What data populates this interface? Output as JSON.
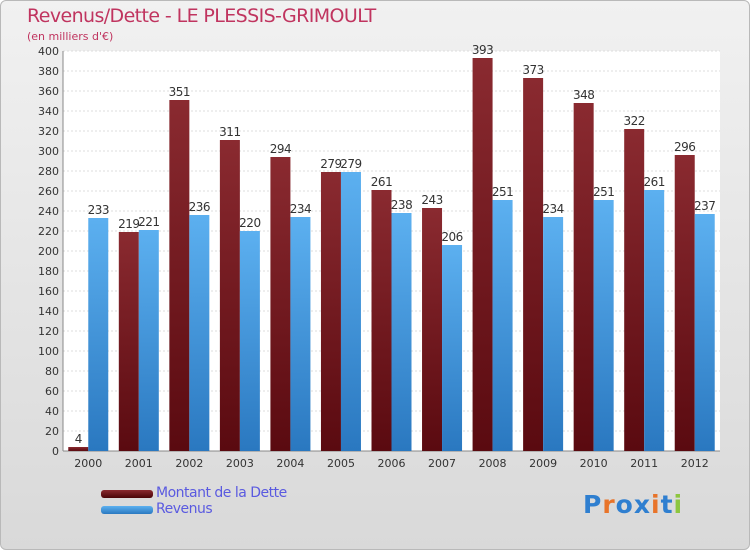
{
  "chart_data": {
    "type": "bar",
    "title": "Revenus/Dette - LE PLESSIS-GRIMOULT",
    "subtitle": "(en milliers d'€)",
    "categories": [
      "2000",
      "2001",
      "2002",
      "2003",
      "2004",
      "2005",
      "2006",
      "2007",
      "2008",
      "2009",
      "2010",
      "2011",
      "2012"
    ],
    "series": [
      {
        "name": "Montant de la Dette",
        "color": "#7a1f24",
        "values": [
          4,
          219,
          351,
          311,
          294,
          279,
          261,
          243,
          393,
          373,
          348,
          322,
          296
        ]
      },
      {
        "name": "Revenus",
        "color": "#3f95d8",
        "values": [
          233,
          221,
          236,
          220,
          234,
          279,
          238,
          206,
          251,
          234,
          251,
          261,
          237
        ]
      }
    ],
    "ylim": [
      0,
      400
    ],
    "yticks": [
      0,
      20,
      40,
      60,
      80,
      100,
      120,
      140,
      160,
      180,
      200,
      220,
      240,
      260,
      280,
      300,
      320,
      340,
      360,
      380,
      400
    ],
    "grid": true,
    "legend_position": "bottom-left"
  },
  "brand": {
    "letters": [
      "P",
      "r",
      "o",
      "x",
      "i",
      "t",
      "i"
    ],
    "colors": [
      "#2f7fd0",
      "#e8742a",
      "#2f7fd0",
      "#2f7fd0",
      "#e8742a",
      "#2f7fd0",
      "#8dc63f"
    ]
  }
}
